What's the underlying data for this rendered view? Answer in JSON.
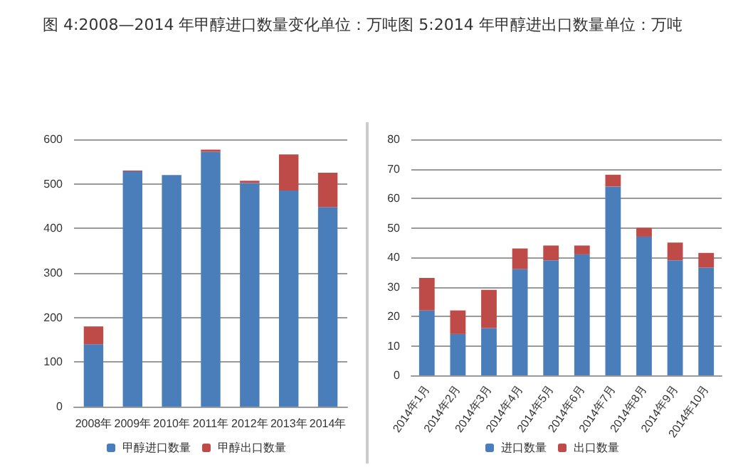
{
  "chart_data": [
    {
      "type": "bar",
      "title": "图 4:2008—2014 年甲醇进口数量变化单位：万吨",
      "categories": [
        "2008年",
        "2009年",
        "2010年",
        "2011年",
        "2012年",
        "2013年",
        "2014年"
      ],
      "stacked": true,
      "series": [
        {
          "name": "甲醇进口数量",
          "color": "#4a7ebb",
          "values": [
            140,
            528,
            520,
            572,
            502,
            485,
            448
          ]
        },
        {
          "name": "甲醇出口数量",
          "color": "#be4b48",
          "values": [
            40,
            2,
            null,
            5,
            5,
            81,
            77
          ]
        }
      ],
      "ylim": [
        0,
        600
      ],
      "yticks": [
        0,
        100,
        200,
        300,
        400,
        500,
        600
      ],
      "grid": "y",
      "legend": "bottom"
    },
    {
      "type": "bar",
      "title": "图 5:2014 年甲醇进出口数量单位：万吨",
      "categories": [
        "2014年1月",
        "2014年2月",
        "2014年3月",
        "2014年4月",
        "2014年5月",
        "2014年6月",
        "2014年7月",
        "2014年8月",
        "2014年9月",
        "2014年10月"
      ],
      "stacked": true,
      "series": [
        {
          "name": "进口数量",
          "color": "#4a7ebb",
          "values": [
            22,
            14,
            16,
            36,
            39,
            41,
            64,
            47,
            39,
            36.5
          ]
        },
        {
          "name": "出口数量",
          "color": "#be4b48",
          "values": [
            11,
            8,
            13,
            7,
            5,
            3,
            4,
            3,
            6,
            5
          ]
        }
      ],
      "ylim": [
        0,
        80
      ],
      "yticks": [
        0,
        10,
        20,
        30,
        40,
        50,
        60,
        70,
        80
      ],
      "grid": "y",
      "legend": "bottom"
    }
  ]
}
